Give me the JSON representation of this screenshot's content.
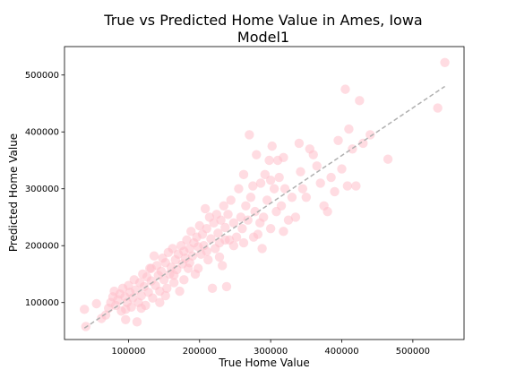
{
  "chart_data": {
    "type": "scatter",
    "title_line1": "True vs Predicted Home Value in Ames, Iowa",
    "title_line2": "Model1",
    "xlabel": "True Home Value",
    "ylabel": "Predicted Home Value",
    "xlim": [
      10000,
      572000
    ],
    "ylim": [
      35000,
      550000
    ],
    "xticks": [
      100000,
      200000,
      300000,
      400000,
      500000
    ],
    "yticks": [
      100000,
      200000,
      300000,
      400000,
      500000
    ],
    "xtick_labels": [
      "100000",
      "200000",
      "300000",
      "400000",
      "500000"
    ],
    "ytick_labels": [
      "100000",
      "200000",
      "300000",
      "400000",
      "500000"
    ],
    "point_color": "#ffc0cb",
    "reference_line": {
      "color": "#b0b0b0",
      "style": "dashed",
      "x": [
        38000,
        545000
      ],
      "y": [
        55000,
        480000
      ]
    },
    "points": [
      [
        40000,
        58000
      ],
      [
        38000,
        88000
      ],
      [
        55000,
        98000
      ],
      [
        62000,
        72000
      ],
      [
        68000,
        78000
      ],
      [
        72000,
        90000
      ],
      [
        75000,
        100000
      ],
      [
        78000,
        110000
      ],
      [
        80000,
        120000
      ],
      [
        82000,
        95000
      ],
      [
        85000,
        105000
      ],
      [
        88000,
        115000
      ],
      [
        90000,
        85000
      ],
      [
        92000,
        125000
      ],
      [
        95000,
        110000
      ],
      [
        96000,
        70000
      ],
      [
        98000,
        100000
      ],
      [
        100000,
        130000
      ],
      [
        102000,
        118000
      ],
      [
        104000,
        92000
      ],
      [
        106000,
        108000
      ],
      [
        108000,
        140000
      ],
      [
        110000,
        122000
      ],
      [
        112000,
        66000
      ],
      [
        114000,
        100000
      ],
      [
        116000,
        135000
      ],
      [
        118000,
        112000
      ],
      [
        120000,
        150000
      ],
      [
        122000,
        128000
      ],
      [
        124000,
        95000
      ],
      [
        126000,
        145000
      ],
      [
        128000,
        118000
      ],
      [
        130000,
        160000
      ],
      [
        132000,
        138000
      ],
      [
        134000,
        108000
      ],
      [
        136000,
        182000
      ],
      [
        138000,
        130000
      ],
      [
        140000,
        165000
      ],
      [
        142000,
        148000
      ],
      [
        144000,
        100000
      ],
      [
        146000,
        155000
      ],
      [
        148000,
        178000
      ],
      [
        150000,
        140000
      ],
      [
        152000,
        170000
      ],
      [
        154000,
        125000
      ],
      [
        156000,
        188000
      ],
      [
        158000,
        150000
      ],
      [
        160000,
        162000
      ],
      [
        162000,
        195000
      ],
      [
        164000,
        135000
      ],
      [
        166000,
        175000
      ],
      [
        168000,
        158000
      ],
      [
        170000,
        185000
      ],
      [
        172000,
        120000
      ],
      [
        174000,
        200000
      ],
      [
        176000,
        168000
      ],
      [
        178000,
        190000
      ],
      [
        180000,
        178000
      ],
      [
        182000,
        210000
      ],
      [
        184000,
        160000
      ],
      [
        186000,
        195000
      ],
      [
        188000,
        225000
      ],
      [
        190000,
        182000
      ],
      [
        192000,
        205000
      ],
      [
        194000,
        150000
      ],
      [
        196000,
        215000
      ],
      [
        198000,
        198000
      ],
      [
        200000,
        235000
      ],
      [
        202000,
        185000
      ],
      [
        204000,
        220000
      ],
      [
        206000,
        200000
      ],
      [
        208000,
        265000
      ],
      [
        210000,
        230000
      ],
      [
        212000,
        175000
      ],
      [
        214000,
        250000
      ],
      [
        216000,
        212000
      ],
      [
        218000,
        125000
      ],
      [
        220000,
        240000
      ],
      [
        222000,
        195000
      ],
      [
        224000,
        255000
      ],
      [
        226000,
        222000
      ],
      [
        228000,
        205000
      ],
      [
        230000,
        245000
      ],
      [
        232000,
        165000
      ],
      [
        234000,
        270000
      ],
      [
        236000,
        232000
      ],
      [
        238000,
        128000
      ],
      [
        240000,
        255000
      ],
      [
        242000,
        210000
      ],
      [
        244000,
        280000
      ],
      [
        248000,
        240000
      ],
      [
        252000,
        215000
      ],
      [
        255000,
        300000
      ],
      [
        258000,
        250000
      ],
      [
        260000,
        230000
      ],
      [
        262000,
        325000
      ],
      [
        265000,
        270000
      ],
      [
        268000,
        245000
      ],
      [
        270000,
        395000
      ],
      [
        272000,
        285000
      ],
      [
        275000,
        305000
      ],
      [
        278000,
        260000
      ],
      [
        280000,
        360000
      ],
      [
        282000,
        220000
      ],
      [
        285000,
        240000
      ],
      [
        288000,
        195000
      ],
      [
        290000,
        250000
      ],
      [
        292000,
        325000
      ],
      [
        295000,
        280000
      ],
      [
        298000,
        350000
      ],
      [
        300000,
        230000
      ],
      [
        302000,
        375000
      ],
      [
        305000,
        300000
      ],
      [
        308000,
        260000
      ],
      [
        310000,
        350000
      ],
      [
        312000,
        320000
      ],
      [
        315000,
        270000
      ],
      [
        318000,
        225000
      ],
      [
        320000,
        300000
      ],
      [
        325000,
        245000
      ],
      [
        330000,
        285000
      ],
      [
        335000,
        250000
      ],
      [
        340000,
        380000
      ],
      [
        342000,
        330000
      ],
      [
        345000,
        300000
      ],
      [
        350000,
        285000
      ],
      [
        355000,
        370000
      ],
      [
        360000,
        360000
      ],
      [
        365000,
        340000
      ],
      [
        370000,
        310000
      ],
      [
        375000,
        270000
      ],
      [
        380000,
        260000
      ],
      [
        385000,
        320000
      ],
      [
        390000,
        295000
      ],
      [
        395000,
        385000
      ],
      [
        400000,
        335000
      ],
      [
        405000,
        475000
      ],
      [
        408000,
        305000
      ],
      [
        410000,
        405000
      ],
      [
        415000,
        370000
      ],
      [
        420000,
        305000
      ],
      [
        425000,
        455000
      ],
      [
        430000,
        380000
      ],
      [
        440000,
        395000
      ],
      [
        465000,
        352000
      ],
      [
        535000,
        442000
      ],
      [
        545000,
        522000
      ],
      [
        96000,
        88000
      ],
      [
        118000,
        90000
      ],
      [
        132000,
        160000
      ],
      [
        144000,
        120000
      ],
      [
        152000,
        112000
      ],
      [
        164000,
        148000
      ],
      [
        178000,
        140000
      ],
      [
        186000,
        170000
      ],
      [
        198000,
        160000
      ],
      [
        210000,
        190000
      ],
      [
        228000,
        180000
      ],
      [
        236000,
        210000
      ],
      [
        248000,
        200000
      ],
      [
        262000,
        205000
      ],
      [
        276000,
        215000
      ],
      [
        286000,
        310000
      ],
      [
        300000,
        315000
      ],
      [
        318000,
        355000
      ]
    ]
  }
}
